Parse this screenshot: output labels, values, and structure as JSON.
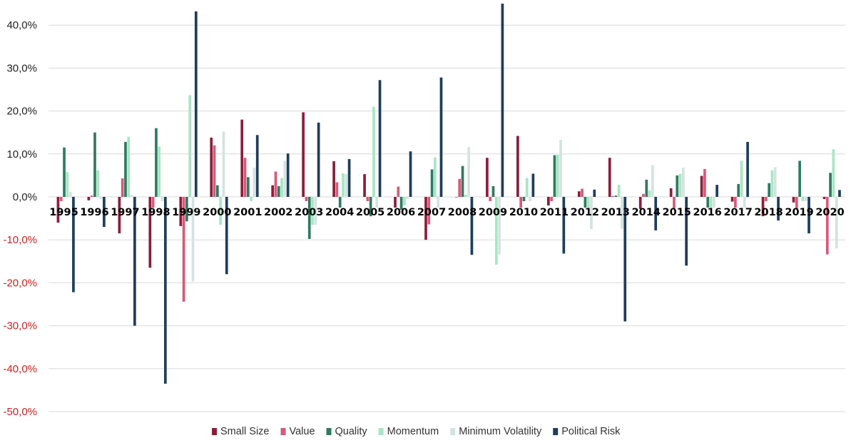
{
  "chart_data": {
    "type": "bar",
    "title": "",
    "xlabel": "",
    "ylabel": "",
    "ylim": [
      -50,
      45
    ],
    "y_ticks": [
      -50,
      -40,
      -30,
      -20,
      -10,
      0,
      10,
      20,
      30,
      40
    ],
    "y_tick_labels": [
      "-50,0%",
      "-40,0%",
      "-30,0%",
      "-20,0%",
      "-10,0%",
      "0,0%",
      "10,0%",
      "20,0%",
      "30,0%",
      "40,0%"
    ],
    "grid": true,
    "legend_position": "bottom",
    "categories": [
      "1995",
      "1996",
      "1997",
      "1998",
      "1999",
      "2000",
      "2001",
      "2002",
      "2003",
      "2004",
      "2005",
      "2006",
      "2007",
      "2008",
      "2009",
      "2010",
      "2011",
      "2012",
      "2013",
      "2014",
      "2015",
      "2016",
      "2017",
      "2018",
      "2019",
      "2020"
    ],
    "series": [
      {
        "name": "Small Size",
        "color": "#8c1d3c",
        "values": [
          -6.0,
          -0.8,
          -8.5,
          -16.5,
          -6.8,
          13.8,
          18.0,
          2.7,
          19.7,
          8.3,
          5.3,
          -2.5,
          -10.0,
          0.0,
          9.1,
          14.2,
          -2.0,
          1.3,
          9.1,
          -2.8,
          2.0,
          4.9,
          -1.1,
          -4.5,
          -1.3,
          -0.5
        ]
      },
      {
        "name": "Value",
        "color": "#d65a78",
        "values": [
          -1.0,
          0.3,
          4.3,
          -2.5,
          -24.4,
          12.0,
          9.1,
          5.9,
          -1.0,
          3.4,
          -1.0,
          2.4,
          -6.4,
          4.2,
          -1.0,
          -2.5,
          -1.0,
          1.9,
          0.2,
          0.7,
          -2.7,
          6.5,
          -2.5,
          -1.0,
          -2.8,
          -13.4
        ]
      },
      {
        "name": "Quality",
        "color": "#2e7a62",
        "values": [
          11.5,
          15.0,
          12.8,
          16.0,
          -5.7,
          2.7,
          4.6,
          2.5,
          -9.8,
          -2.5,
          -4.5,
          -3.0,
          6.4,
          7.2,
          2.5,
          -1.0,
          9.7,
          -2.5,
          0.3,
          4.0,
          5.0,
          -2.5,
          3.0,
          3.2,
          8.4,
          5.6
        ]
      },
      {
        "name": "Momentum",
        "color": "#a8e6c3",
        "values": [
          5.8,
          6.2,
          14.0,
          11.7,
          23.7,
          -6.5,
          -1.0,
          4.4,
          -6.5,
          5.5,
          21.0,
          -2.0,
          9.2,
          0.5,
          -15.8,
          4.4,
          9.8,
          -2.5,
          2.8,
          1.5,
          5.4,
          -2.5,
          8.4,
          6.2,
          -1.0,
          11.1
        ]
      },
      {
        "name": "Minimum Volatility",
        "color": "#d3e3e2",
        "values": [
          1.2,
          -0.5,
          0.5,
          -1.0,
          -19.7,
          15.2,
          6.8,
          8.4,
          -6.5,
          5.3,
          -2.5,
          -0.5,
          -2.5,
          11.6,
          -13.4,
          -1.0,
          13.3,
          -7.5,
          -7.5,
          7.4,
          6.8,
          -2.5,
          -2.5,
          6.9,
          -1.0,
          -12.0
        ]
      },
      {
        "name": "Political Risk",
        "color": "#1f3d5c",
        "values": [
          -22.2,
          -7.0,
          -30.0,
          -43.5,
          43.2,
          -18.0,
          14.4,
          10.1,
          17.3,
          8.8,
          27.2,
          10.6,
          27.8,
          -13.5,
          45.0,
          5.4,
          -13.2,
          1.7,
          -29.0,
          -7.8,
          -16.0,
          2.8,
          12.8,
          -5.5,
          -8.5,
          1.6
        ]
      }
    ]
  }
}
